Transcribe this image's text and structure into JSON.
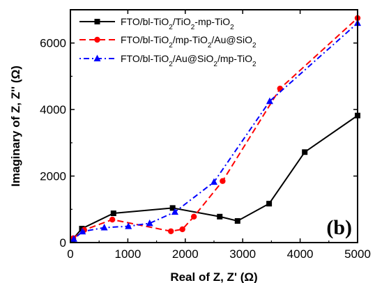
{
  "chart_data": {
    "type": "line",
    "panel_label": "(b)",
    "xlabel": "Real of Z, Z' (Ω)",
    "ylabel": "Imaginary of Z, Z'' (Ω)",
    "xlim": [
      0,
      5000
    ],
    "ylim": [
      0,
      7000
    ],
    "x_ticks": [
      0,
      1000,
      2000,
      3000,
      4000,
      5000
    ],
    "y_ticks": [
      0,
      2000,
      4000,
      6000
    ],
    "grid": false,
    "legend_position": "top-left",
    "series": [
      {
        "name": "FTO/bl-TiO2/TiO2-mp-TiO2",
        "legend_parts": [
          [
            "FTO/bl-TiO",
            ""
          ],
          [
            "2",
            "sub"
          ],
          [
            "/TiO",
            ""
          ],
          [
            "2",
            "sub"
          ],
          [
            "-mp-TiO",
            ""
          ],
          [
            "2",
            "sub"
          ]
        ],
        "color": "#000000",
        "marker": "square",
        "line": "solid",
        "x": [
          40,
          200,
          750,
          1780,
          2600,
          2910,
          3460,
          4080,
          5000
        ],
        "y": [
          100,
          420,
          880,
          1040,
          780,
          650,
          1170,
          2720,
          3820
        ]
      },
      {
        "name": "FTO/bl-TiO2/mp-TiO2/Au@SiO2",
        "legend_parts": [
          [
            "FTO/bl-TiO",
            ""
          ],
          [
            "2",
            "sub"
          ],
          [
            "/mp-TiO",
            ""
          ],
          [
            "2",
            "sub"
          ],
          [
            "/Au@SiO",
            ""
          ],
          [
            "2",
            "sub"
          ]
        ],
        "color": "#ff0000",
        "marker": "circle",
        "line": "dash",
        "x": [
          50,
          240,
          730,
          1750,
          1950,
          2150,
          2650,
          3650,
          5000
        ],
        "y": [
          130,
          380,
          690,
          340,
          400,
          780,
          1850,
          4630,
          6750
        ]
      },
      {
        "name": "FTO/bl-TiO2/Au@SiO2/mp-TiO2",
        "legend_parts": [
          [
            "FTO/bl-TiO",
            ""
          ],
          [
            "2",
            "sub"
          ],
          [
            "/Au@SiO",
            ""
          ],
          [
            "2",
            "sub"
          ],
          [
            "/mp-TiO",
            ""
          ],
          [
            "2",
            "sub"
          ]
        ],
        "color": "#0000ff",
        "marker": "triangle",
        "line": "dashdot",
        "x": [
          60,
          210,
          590,
          1010,
          1380,
          1820,
          2500,
          3470,
          5000
        ],
        "y": [
          110,
          330,
          450,
          490,
          580,
          920,
          1820,
          4250,
          6600
        ]
      }
    ]
  }
}
